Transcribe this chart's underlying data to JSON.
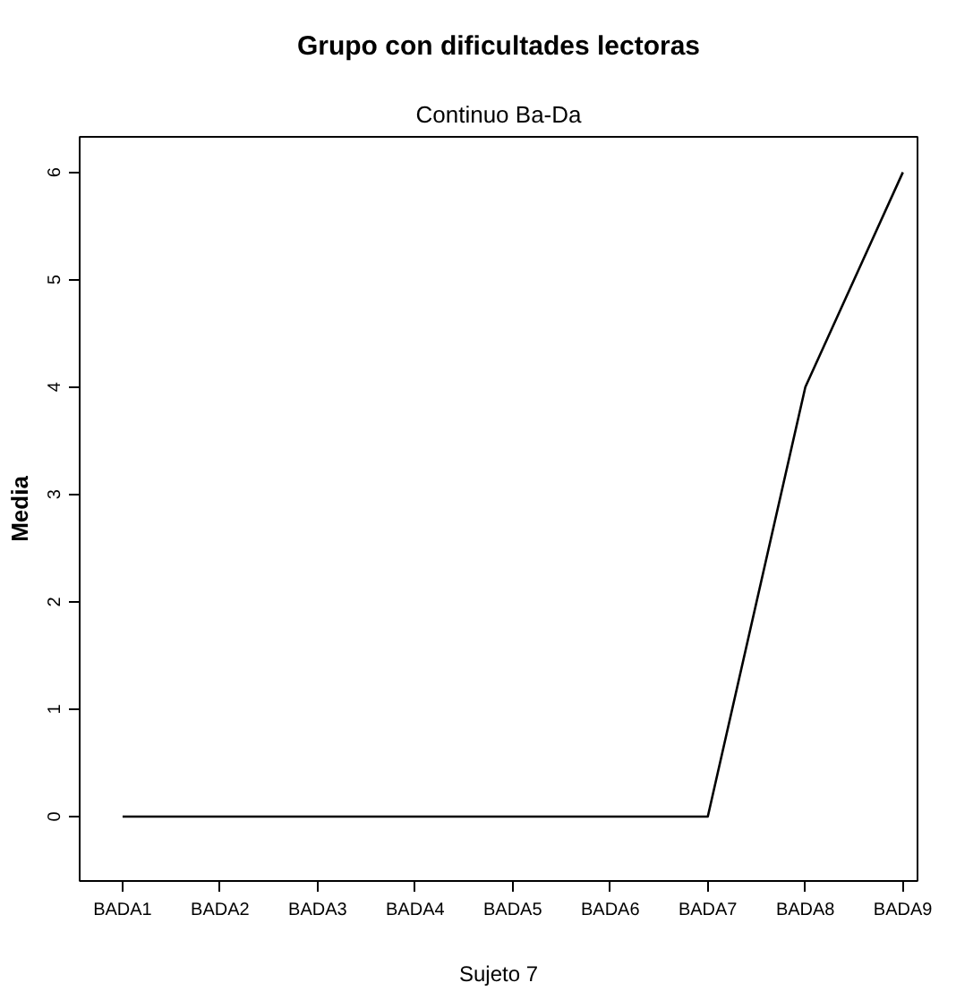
{
  "chart_data": {
    "type": "line",
    "title": "Grupo con dificultades lectoras",
    "subtitle": "Continuo Ba-Da",
    "xlabel": "Sujeto 7",
    "ylabel": "Media",
    "categories": [
      "BADA1",
      "BADA2",
      "BADA3",
      "BADA4",
      "BADA5",
      "BADA6",
      "BADA7",
      "BADA8",
      "BADA9"
    ],
    "series": [
      {
        "color": "#000000",
        "values": [
          0,
          0,
          0,
          0,
          0,
          0,
          0,
          4,
          6
        ]
      }
    ],
    "ylim": [
      -0.6,
      6.33
    ],
    "yticks": [
      0,
      1,
      2,
      3,
      4,
      5,
      6
    ],
    "grid": false,
    "marker": "none",
    "line_style": "solid"
  }
}
